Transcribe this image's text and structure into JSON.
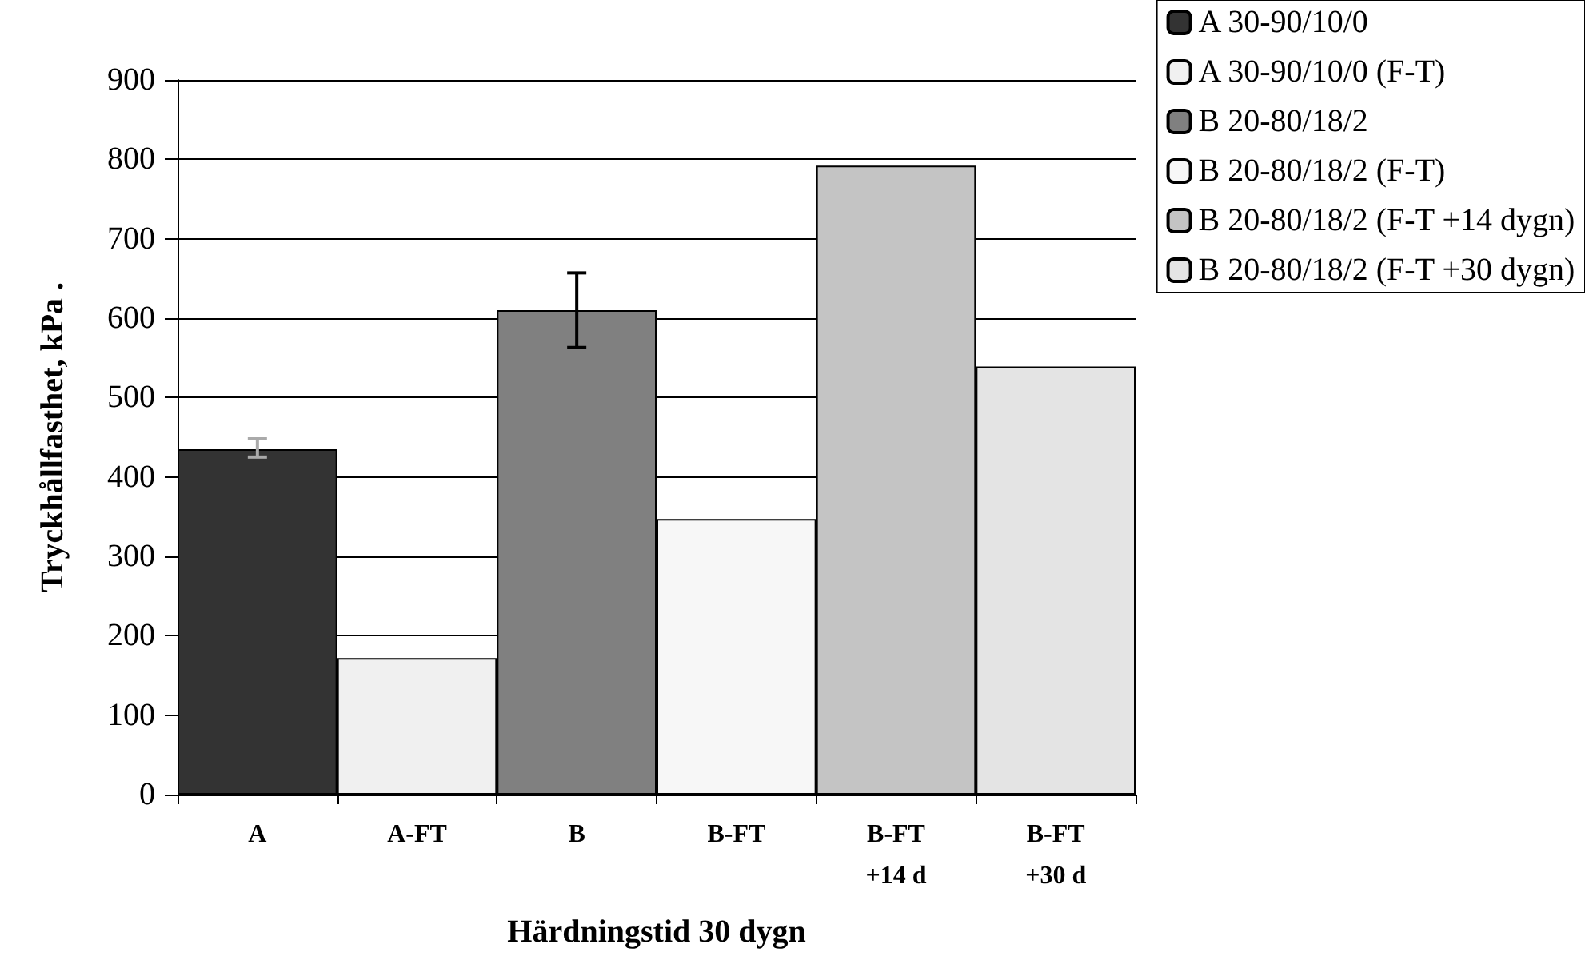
{
  "chart_data": {
    "type": "bar",
    "xlabel": "Härdningstid 30 dygn",
    "ylabel": "Tryckhållfasthet, kPa .",
    "categories": [
      "A",
      "A-FT",
      "B",
      "B-FT",
      "B-FT\n+14 d",
      "B-FT\n+30 d"
    ],
    "series": [
      {
        "name": "A 30-90/10/0",
        "color": "#333333",
        "values": [
          435,
          null,
          null,
          null,
          null,
          null
        ],
        "errors": [
          [
            425,
            448
          ],
          null,
          null,
          null,
          null,
          null
        ]
      },
      {
        "name": "A 30-90/10/0 (F-T)",
        "color": "#f0f0f0",
        "values": [
          null,
          172,
          null,
          null,
          null,
          null
        ]
      },
      {
        "name": "B 20-80/18/2",
        "color": "#808080",
        "values": [
          null,
          null,
          610,
          null,
          null,
          null
        ],
        "errors": [
          null,
          null,
          [
            563,
            657
          ],
          null,
          null,
          null
        ]
      },
      {
        "name": "B 20-80/18/2 (F-T)",
        "color": "#f7f7f7",
        "values": [
          null,
          null,
          null,
          347,
          null,
          null
        ]
      },
      {
        "name": "B 20-80/18/2 (F-T +14 dygn)",
        "color": "#c4c4c4",
        "values": [
          null,
          null,
          null,
          null,
          792,
          null
        ]
      },
      {
        "name": "B 20-80/18/2 (F-T +30 dygn)",
        "color": "#e4e4e4",
        "values": [
          null,
          null,
          null,
          null,
          null,
          539
        ]
      }
    ],
    "ylim": [
      0,
      900
    ],
    "yticks": [
      0,
      100,
      200,
      300,
      400,
      500,
      600,
      700,
      800,
      900
    ],
    "grid": "y",
    "legend": "top right"
  }
}
